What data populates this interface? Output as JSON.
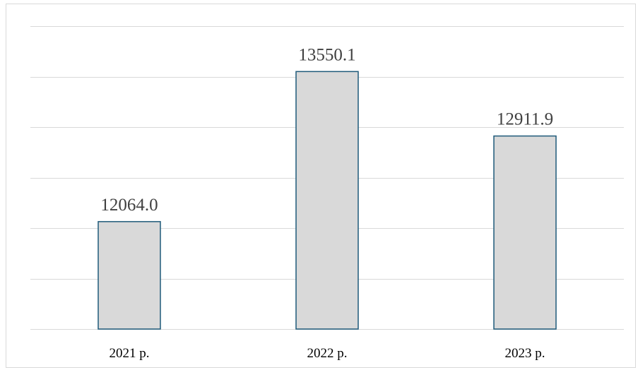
{
  "chart_data": {
    "type": "bar",
    "categories": [
      "2021 р.",
      "2022 р.",
      "2023 р."
    ],
    "values": [
      12064.0,
      13550.1,
      12911.9
    ],
    "data_labels": [
      "12064.0",
      "13550.1",
      "12911.9"
    ],
    "title": "",
    "xlabel": "",
    "ylabel": "",
    "ylim": [
      11000,
      14000
    ],
    "y_gridline_step": 500,
    "y_tick_labels_shown": false,
    "grid": true,
    "legend": "none",
    "colors": {
      "bar_fill": "#d9d9d9",
      "bar_stroke": "#1f5a7a",
      "gridline": "#d9d9d9",
      "label_text": "#404040",
      "tick_text": "#000000"
    }
  }
}
